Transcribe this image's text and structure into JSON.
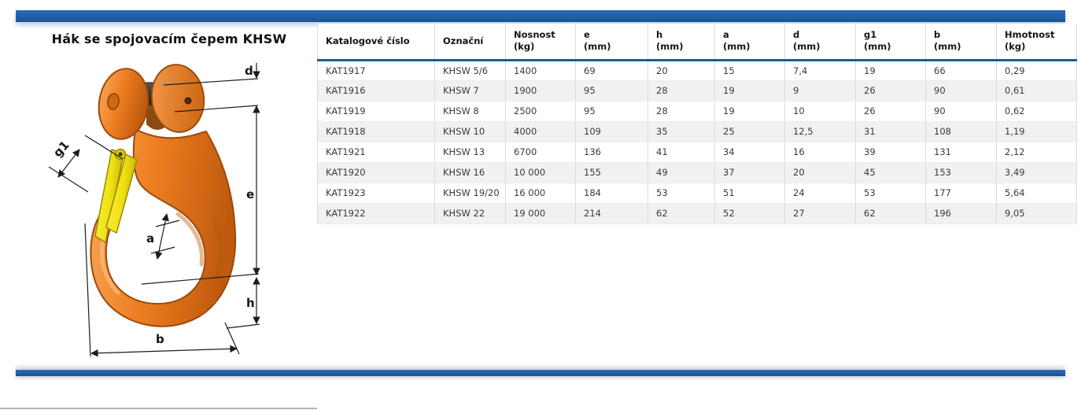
{
  "page": {
    "title": "Hák se spojovacím čepem KHSW"
  },
  "theme": {
    "accent_blue": "#215ea7",
    "header_rule_blue": "#1c5d96",
    "row_alt_gray": "#f1f1f0",
    "hook_orange": "#ed7d21",
    "latch_yellow": "#f2e41c",
    "pin_black": "#2e2e2e"
  },
  "illustration": {
    "alt": "Dimensioned drawing of clevis sling hook with safety latch",
    "dimension_labels": {
      "d": "d",
      "e": "e",
      "g1": "g1",
      "a": "a",
      "h": "h",
      "b": "b"
    }
  },
  "table": {
    "columns": [
      {
        "key": "katalogove-cislo",
        "label": "Katalogové číslo",
        "unit": ""
      },
      {
        "key": "oznacni",
        "label": "Označní",
        "unit": ""
      },
      {
        "key": "nosnost",
        "label": "Nosnost",
        "unit": "(kg)"
      },
      {
        "key": "e",
        "label": "e",
        "unit": "(mm)"
      },
      {
        "key": "h",
        "label": "h",
        "unit": "(mm)"
      },
      {
        "key": "a",
        "label": "a",
        "unit": "(mm)"
      },
      {
        "key": "d",
        "label": "d",
        "unit": "(mm)"
      },
      {
        "key": "g1",
        "label": "g1",
        "unit": "(mm)"
      },
      {
        "key": "b",
        "label": "b",
        "unit": "(mm)"
      },
      {
        "key": "hmotnost",
        "label": "Hmotnost",
        "unit": "(kg)"
      }
    ],
    "rows": [
      [
        "KAT1917",
        "KHSW 5/6",
        "1400",
        "69",
        "20",
        "15",
        "7,4",
        "19",
        "66",
        "0,29"
      ],
      [
        "KAT1916",
        "KHSW 7",
        "1900",
        "95",
        "28",
        "19",
        "9",
        "26",
        "90",
        "0,61"
      ],
      [
        "KAT1919",
        "KHSW 8",
        "2500",
        "95",
        "28",
        "19",
        "10",
        "26",
        "90",
        "0,62"
      ],
      [
        "KAT1918",
        "KHSW 10",
        "4000",
        "109",
        "35",
        "25",
        "12,5",
        "31",
        "108",
        "1,19"
      ],
      [
        "KAT1921",
        "KHSW 13",
        "6700",
        "136",
        "41",
        "34",
        "16",
        "39",
        "131",
        "2,12"
      ],
      [
        "KAT1920",
        "KHSW 16",
        "10 000",
        "155",
        "49",
        "37",
        "20",
        "45",
        "153",
        "3,49"
      ],
      [
        "KAT1923",
        "KHSW 19/20",
        "16 000",
        "184",
        "53",
        "51",
        "24",
        "53",
        "177",
        "5,64"
      ],
      [
        "KAT1922",
        "KHSW 22",
        "19 000",
        "214",
        "62",
        "52",
        "27",
        "62",
        "196",
        "9,05"
      ]
    ]
  }
}
